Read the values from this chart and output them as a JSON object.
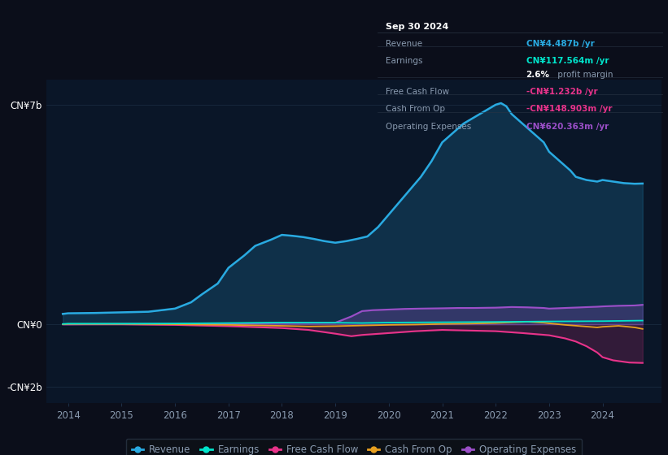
{
  "bg_color": "#0b0e1a",
  "plot_bg_color": "#0a1628",
  "grid_color": "#1c2e45",
  "text_color": "#8a9bb0",
  "title_color": "#ffffff",
  "revenue_color": "#29aae1",
  "earnings_color": "#00e5cc",
  "fcf_color": "#e8338a",
  "cashop_color": "#e8a020",
  "opex_color": "#9b4fc8",
  "tooltip_bg": "#05080f",
  "tooltip_border": "#2a3545",
  "tooltip_date": "Sep 30 2024",
  "tooltip_revenue_val": "CN¥4.487b",
  "tooltip_earnings_val": "CN¥117.564m",
  "tooltip_profit_margin": "2.6%",
  "tooltip_fcf_val": "-CN¥1.232b",
  "tooltip_cashop_val": "-CN¥148.903m",
  "tooltip_opex_val": "CN¥620.363m",
  "t_rev": [
    2013.9,
    2014.0,
    2014.5,
    2015.0,
    2015.5,
    2016.0,
    2016.3,
    2016.5,
    2016.8,
    2017.0,
    2017.3,
    2017.5,
    2017.8,
    2018.0,
    2018.2,
    2018.4,
    2018.6,
    2018.8,
    2019.0,
    2019.2,
    2019.4,
    2019.6,
    2019.8,
    2020.0,
    2020.2,
    2020.4,
    2020.6,
    2020.8,
    2021.0,
    2021.2,
    2021.4,
    2021.6,
    2021.8,
    2022.0,
    2022.1,
    2022.2,
    2022.3,
    2022.5,
    2022.7,
    2022.9,
    2023.0,
    2023.2,
    2023.4,
    2023.5,
    2023.7,
    2023.9,
    2024.0,
    2024.2,
    2024.4,
    2024.6,
    2024.75
  ],
  "v_rev": [
    0.33,
    0.35,
    0.36,
    0.38,
    0.4,
    0.5,
    0.7,
    0.95,
    1.3,
    1.8,
    2.2,
    2.5,
    2.7,
    2.85,
    2.82,
    2.78,
    2.72,
    2.65,
    2.6,
    2.65,
    2.72,
    2.8,
    3.1,
    3.5,
    3.9,
    4.3,
    4.7,
    5.2,
    5.8,
    6.1,
    6.4,
    6.6,
    6.8,
    7.0,
    7.05,
    6.95,
    6.7,
    6.4,
    6.1,
    5.8,
    5.5,
    5.2,
    4.9,
    4.7,
    4.6,
    4.55,
    4.6,
    4.55,
    4.5,
    4.48,
    4.487
  ],
  "t_earn": [
    2013.9,
    2014,
    2015,
    2016,
    2017,
    2018,
    2019,
    2019.5,
    2020,
    2021,
    2022,
    2023,
    2024,
    2024.75
  ],
  "v_earn": [
    0.01,
    0.02,
    0.02,
    0.025,
    0.04,
    0.055,
    0.05,
    0.04,
    0.055,
    0.065,
    0.075,
    0.09,
    0.1,
    0.118
  ],
  "t_fcf": [
    2013.9,
    2014,
    2015,
    2016,
    2017,
    2018,
    2018.5,
    2019,
    2019.3,
    2019.5,
    2020,
    2020.5,
    2021,
    2021.5,
    2022,
    2022.5,
    2023.0,
    2023.3,
    2023.5,
    2023.7,
    2023.9,
    2024.0,
    2024.2,
    2024.5,
    2024.75
  ],
  "v_fcf": [
    0.0,
    0.0,
    0.0,
    -0.02,
    -0.06,
    -0.12,
    -0.18,
    -0.3,
    -0.38,
    -0.34,
    -0.28,
    -0.22,
    -0.18,
    -0.2,
    -0.22,
    -0.28,
    -0.35,
    -0.45,
    -0.55,
    -0.7,
    -0.9,
    -1.05,
    -1.15,
    -1.22,
    -1.232
  ],
  "t_cop": [
    2013.9,
    2014,
    2015,
    2016,
    2017,
    2018,
    2018.5,
    2019,
    2019.5,
    2020,
    2020.5,
    2021,
    2021.5,
    2022,
    2022.3,
    2022.6,
    2022.9,
    2023.0,
    2023.3,
    2023.6,
    2023.9,
    2024.0,
    2024.3,
    2024.6,
    2024.75
  ],
  "v_cop": [
    0.0,
    0.01,
    0.01,
    0.0,
    -0.02,
    -0.05,
    -0.07,
    -0.06,
    -0.04,
    -0.02,
    -0.01,
    0.01,
    0.02,
    0.04,
    0.06,
    0.08,
    0.05,
    0.03,
    -0.02,
    -0.06,
    -0.1,
    -0.08,
    -0.05,
    -0.1,
    -0.149
  ],
  "t_opex": [
    2013.9,
    2014,
    2015,
    2016,
    2017,
    2018,
    2019,
    2019.3,
    2019.5,
    2019.7,
    2020,
    2020.3,
    2020.6,
    2021,
    2021.3,
    2021.6,
    2022,
    2022.3,
    2022.6,
    2022.9,
    2023,
    2023.3,
    2023.6,
    2023.9,
    2024,
    2024.3,
    2024.6,
    2024.75
  ],
  "v_opex": [
    0.0,
    0.0,
    0.01,
    0.01,
    0.02,
    0.04,
    0.05,
    0.25,
    0.42,
    0.45,
    0.47,
    0.49,
    0.5,
    0.51,
    0.52,
    0.52,
    0.53,
    0.55,
    0.54,
    0.52,
    0.5,
    0.52,
    0.54,
    0.56,
    0.57,
    0.59,
    0.6,
    0.62
  ],
  "xlim_lo": 2013.6,
  "xlim_hi": 2025.1,
  "ylim_lo": -2.5,
  "ylim_hi": 7.8,
  "xticks": [
    2014,
    2015,
    2016,
    2017,
    2018,
    2019,
    2020,
    2021,
    2022,
    2023,
    2024
  ],
  "ytick_vals": [
    -2,
    0,
    7
  ],
  "ytick_labels": [
    "-CN¥2b",
    "CN¥0",
    "CN¥7b"
  ]
}
